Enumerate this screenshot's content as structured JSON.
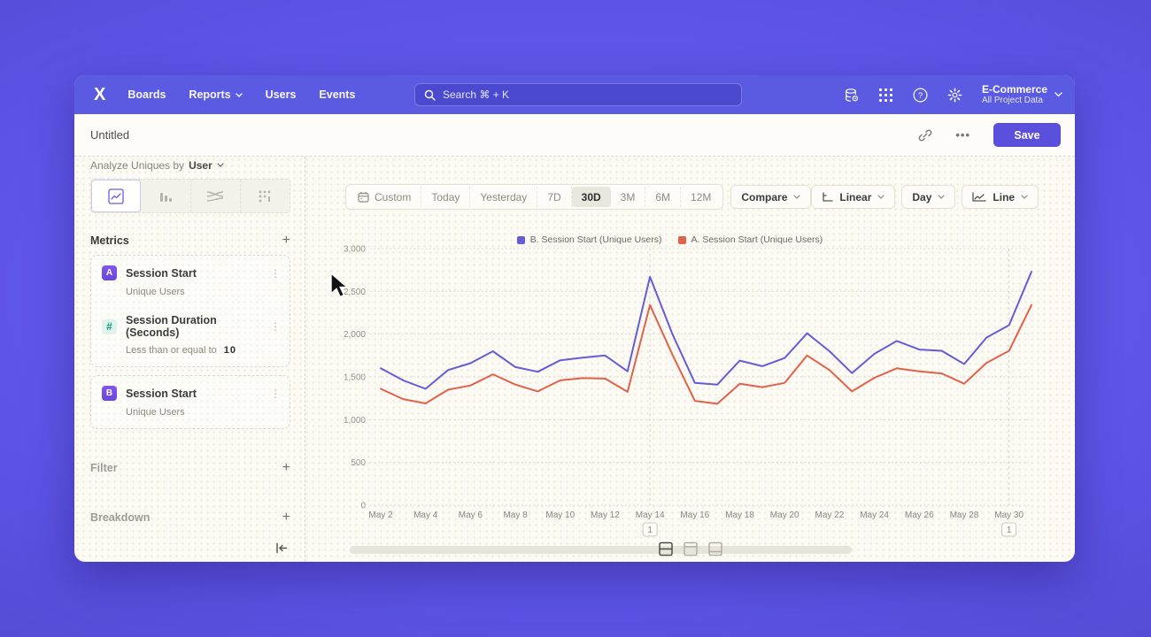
{
  "nav": {
    "logo": "X",
    "items": [
      {
        "label": "Boards"
      },
      {
        "label": "Reports"
      },
      {
        "label": "Users"
      },
      {
        "label": "Events"
      }
    ],
    "search": {
      "placeholder": "Search   ⌘ + K"
    },
    "right_icons": [
      "database-icon",
      "apps-grid-icon",
      "help-icon",
      "gear-icon"
    ],
    "project": {
      "name": "E-Commerce",
      "subtitle": "All Project Data"
    }
  },
  "header": {
    "title": "Untitled",
    "more_label": "•••",
    "save_label": "Save"
  },
  "sidebar": {
    "analyze_label": "Analyze Uniques by",
    "analyze_value": "User",
    "tabs": [
      "line-chart-tab",
      "bar-chart-tab",
      "flow-tab",
      "metric-tab"
    ],
    "metrics_title": "Metrics",
    "add_label": "+",
    "cards": [
      {
        "badge": "A",
        "title": "Session Start",
        "subtitle": "Unique Users"
      },
      {
        "badge": "#",
        "title": "Session Duration (Seconds)",
        "subtitle_prefix": "Less than or equal to",
        "subtitle_value": "10"
      },
      {
        "badge": "B",
        "title": "Session Start",
        "subtitle": "Unique Users"
      }
    ],
    "sections": [
      {
        "label": "Filter"
      },
      {
        "label": "Breakdown"
      }
    ]
  },
  "toolbar": {
    "ranges": [
      "Custom",
      "Today",
      "Yesterday",
      "7D",
      "30D",
      "3M",
      "6M",
      "12M"
    ],
    "selected_range": "30D",
    "compare_label": "Compare",
    "scale_label": "Linear",
    "interval_label": "Day",
    "chart_type_label": "Line"
  },
  "chart_data": {
    "type": "line",
    "title": "",
    "x": [
      "May 2",
      "May 3",
      "May 4",
      "May 5",
      "May 6",
      "May 7",
      "May 8",
      "May 9",
      "May 10",
      "May 11",
      "May 12",
      "May 13",
      "May 14",
      "May 15",
      "May 16",
      "May 17",
      "May 18",
      "May 19",
      "May 20",
      "May 21",
      "May 22",
      "May 23",
      "May 24",
      "May 25",
      "May 26",
      "May 27",
      "May 28",
      "May 29",
      "May 30",
      "May 31"
    ],
    "x_tick_step": 2,
    "series": [
      {
        "name": "B. Session Start (Unique Users)",
        "color": "#675cd8",
        "values": [
          1600,
          1460,
          1360,
          1580,
          1660,
          1800,
          1615,
          1560,
          1695,
          1725,
          1750,
          1565,
          2670,
          2000,
          1430,
          1410,
          1690,
          1625,
          1720,
          2010,
          1800,
          1545,
          1770,
          1920,
          1820,
          1805,
          1650,
          1960,
          2105,
          2730
        ]
      },
      {
        "name": "A. Session Start (Unique Users)",
        "color": "#e2614a",
        "values": [
          1360,
          1240,
          1190,
          1350,
          1400,
          1530,
          1410,
          1330,
          1460,
          1485,
          1480,
          1325,
          2340,
          1760,
          1220,
          1185,
          1420,
          1380,
          1430,
          1750,
          1580,
          1330,
          1490,
          1600,
          1565,
          1540,
          1420,
          1665,
          1805,
          2340
        ]
      }
    ],
    "ylim": [
      0,
      3000
    ],
    "yticks": [
      {
        "value": 0,
        "label": "0"
      },
      {
        "value": 500,
        "label": "500"
      },
      {
        "value": 1000,
        "label": "1,000"
      },
      {
        "value": 1500,
        "label": "1,500"
      },
      {
        "value": 2000,
        "label": "2,000"
      },
      {
        "value": 2500,
        "label": "2,500"
      },
      {
        "value": 3000,
        "label": "3,000"
      }
    ],
    "grid": "horizontal-dotted",
    "legend_position": "top-center",
    "annotations": [
      {
        "x_index": 12,
        "label": "1"
      },
      {
        "x_index": 28,
        "label": "1"
      }
    ]
  }
}
